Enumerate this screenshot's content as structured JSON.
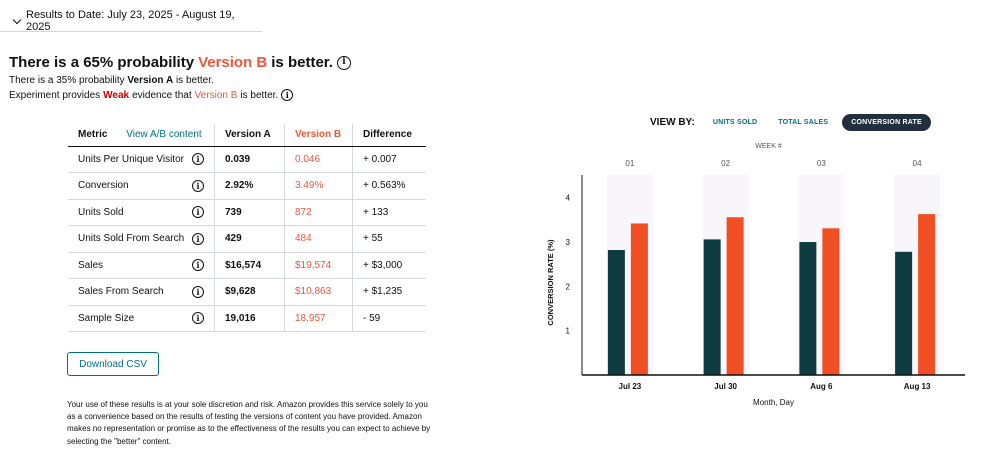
{
  "header": {
    "results_label": "Results to Date: July 23, 2025 - August 19, 2025"
  },
  "summary": {
    "headline_prefix": "There is a 65% probability",
    "headline_version": "Version B",
    "headline_suffix": "is better.",
    "line2_prefix": "There is a 35% probability",
    "line2_version": "Version A",
    "line2_suffix": "is better.",
    "line3_prefix": "Experiment provides",
    "line3_strength": "Weak",
    "line3_mid": "evidence that",
    "line3_version": "Version B",
    "line3_suffix": "is better."
  },
  "table": {
    "headers": {
      "metric": "Metric",
      "link": "View A/B content",
      "version_a": "Version A",
      "version_b": "Version B",
      "difference": "Difference"
    },
    "rows": [
      {
        "metric": "Units Per Unique Visitor",
        "a": "0.039",
        "b": "0.046",
        "diff": "+ 0.007"
      },
      {
        "metric": "Conversion",
        "a": "2.92%",
        "b": "3.49%",
        "diff": "+ 0.563%"
      },
      {
        "metric": "Units Sold",
        "a": "739",
        "b": "872",
        "diff": "+ 133"
      },
      {
        "metric": "Units Sold From Search",
        "a": "429",
        "b": "484",
        "diff": "+ 55"
      },
      {
        "metric": "Sales",
        "a": "$16,574",
        "b": "$19,574",
        "diff": "+ $3,000"
      },
      {
        "metric": "Sales From Search",
        "a": "$9,628",
        "b": "$10,863",
        "diff": "+ $1,235"
      },
      {
        "metric": "Sample Size",
        "a": "19,016",
        "b": "18,957",
        "diff": "- 59"
      }
    ]
  },
  "download_label": "Download CSV",
  "disclaimer": "Your use of these results is at your sole discretion and risk. Amazon provides this service solely to you as a convenience based on the results of testing the versions of content you have provided. Amazon makes no representation or promise as to the effectiveness of the results you can expect to achieve by selecting the \"better\" content.",
  "view_by": {
    "label": "VIEW BY:",
    "options": [
      "UNITS SOLD",
      "TOTAL SALES",
      "CONVERSION RATE"
    ],
    "active": "CONVERSION RATE"
  },
  "colors": {
    "version_a": "#0d3b3f",
    "version_b": "#f04e23",
    "link": "#007185",
    "active_btn": "#232f3e",
    "week_band": "#f8f5fb"
  },
  "chart_data": {
    "type": "bar",
    "top_axis_label": "WEEK #",
    "weeks": [
      "01",
      "02",
      "03",
      "04"
    ],
    "categories": [
      "Jul 23",
      "Jul 30",
      "Aug 6",
      "Aug 13"
    ],
    "series": [
      {
        "name": "Version A",
        "values": [
          2.82,
          3.06,
          3.0,
          2.78
        ]
      },
      {
        "name": "Version B",
        "values": [
          3.42,
          3.56,
          3.31,
          3.63
        ]
      }
    ],
    "xlabel": "Month, Day",
    "ylabel": "CONVERSION RATE (%)",
    "ylim": [
      0,
      4.4
    ],
    "yticks": [
      1,
      2,
      3,
      4
    ]
  }
}
